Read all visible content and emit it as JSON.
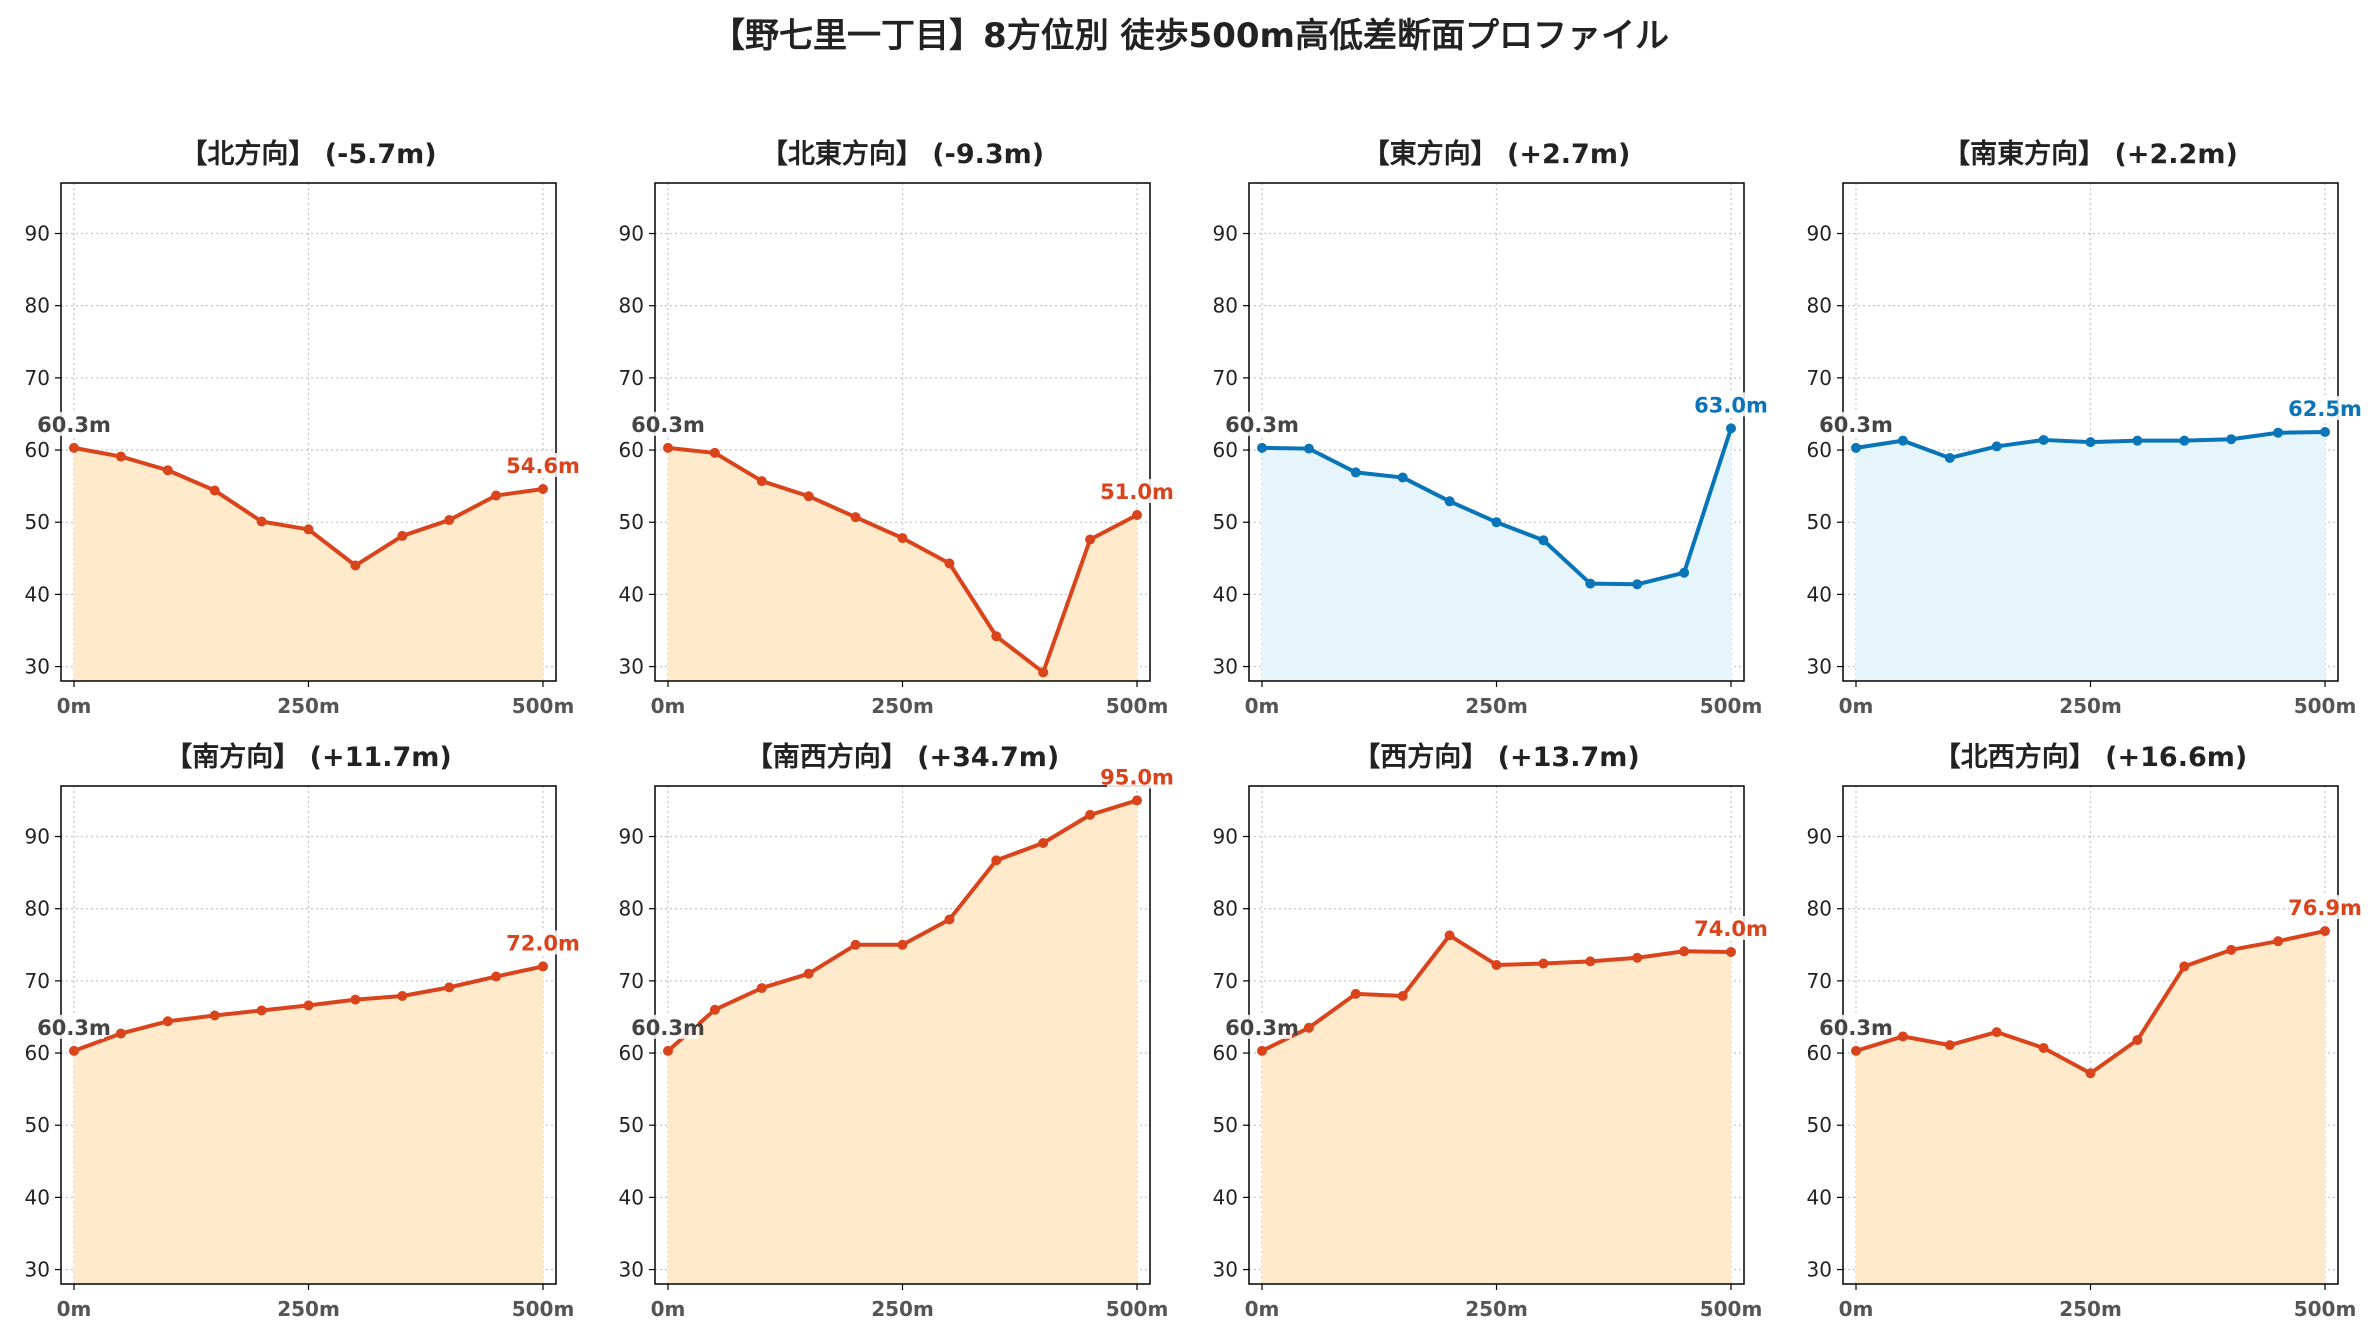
{
  "title": "【野七里一丁目】8方位別 徒歩500m高低差断面プロファイル",
  "colors": {
    "down_line": "#d9441c",
    "down_fill": "#ffebcc",
    "flat_line": "#0a74b8",
    "flat_fill": "#e6f5fb",
    "start_label": "#444444",
    "grid": "#c8c8c8",
    "axis": "#000000"
  },
  "chart_data": [
    {
      "type": "line",
      "title": "【北方向】 (-5.7m)",
      "style": "orange",
      "x": [
        0,
        50,
        100,
        150,
        200,
        250,
        300,
        350,
        400,
        450,
        500
      ],
      "y": [
        60.3,
        59.1,
        57.2,
        54.4,
        50.1,
        49.0,
        44.0,
        48.1,
        50.3,
        53.7,
        54.6
      ],
      "start_label": "60.3m",
      "end_label": "54.6m",
      "xticks": [
        "0m",
        "250m",
        "500m"
      ],
      "yticks": [
        "30",
        "40",
        "50",
        "60",
        "70",
        "80",
        "90"
      ],
      "ylim": [
        28,
        97
      ],
      "grid": true
    },
    {
      "type": "line",
      "title": "【北東方向】 (-9.3m)",
      "style": "orange",
      "x": [
        0,
        50,
        100,
        150,
        200,
        250,
        300,
        350,
        400,
        450,
        500
      ],
      "y": [
        60.3,
        59.6,
        55.7,
        53.6,
        50.7,
        47.8,
        44.3,
        34.2,
        29.2,
        47.6,
        51.0
      ],
      "start_label": "60.3m",
      "end_label": "51.0m",
      "xticks": [
        "0m",
        "250m",
        "500m"
      ],
      "yticks": [
        "30",
        "40",
        "50",
        "60",
        "70",
        "80",
        "90"
      ],
      "ylim": [
        28,
        97
      ],
      "grid": true
    },
    {
      "type": "line",
      "title": "【東方向】 (+2.7m)",
      "style": "blue",
      "x": [
        0,
        50,
        100,
        150,
        200,
        250,
        300,
        350,
        400,
        450,
        500
      ],
      "y": [
        60.3,
        60.2,
        56.9,
        56.2,
        52.9,
        50.0,
        47.5,
        41.5,
        41.4,
        43.0,
        63.0
      ],
      "start_label": "60.3m",
      "end_label": "63.0m",
      "xticks": [
        "0m",
        "250m",
        "500m"
      ],
      "yticks": [
        "30",
        "40",
        "50",
        "60",
        "70",
        "80",
        "90"
      ],
      "ylim": [
        28,
        97
      ],
      "grid": true
    },
    {
      "type": "line",
      "title": "【南東方向】 (+2.2m)",
      "style": "blue",
      "x": [
        0,
        50,
        100,
        150,
        200,
        250,
        300,
        350,
        400,
        450,
        500
      ],
      "y": [
        60.3,
        61.3,
        58.9,
        60.5,
        61.4,
        61.1,
        61.3,
        61.3,
        61.5,
        62.4,
        62.5
      ],
      "start_label": "60.3m",
      "end_label": "62.5m",
      "xticks": [
        "0m",
        "250m",
        "500m"
      ],
      "yticks": [
        "30",
        "40",
        "50",
        "60",
        "70",
        "80",
        "90"
      ],
      "ylim": [
        28,
        97
      ],
      "grid": true
    },
    {
      "type": "line",
      "title": "【南方向】 (+11.7m)",
      "style": "orange",
      "x": [
        0,
        50,
        100,
        150,
        200,
        250,
        300,
        350,
        400,
        450,
        500
      ],
      "y": [
        60.3,
        62.7,
        64.4,
        65.2,
        65.9,
        66.6,
        67.4,
        67.9,
        69.1,
        70.6,
        72.0
      ],
      "start_label": "60.3m",
      "end_label": "72.0m",
      "xticks": [
        "0m",
        "250m",
        "500m"
      ],
      "yticks": [
        "30",
        "40",
        "50",
        "60",
        "70",
        "80",
        "90"
      ],
      "ylim": [
        28,
        97
      ],
      "grid": true
    },
    {
      "type": "line",
      "title": "【南西方向】 (+34.7m)",
      "style": "orange",
      "x": [
        0,
        50,
        100,
        150,
        200,
        250,
        300,
        350,
        400,
        450,
        500
      ],
      "y": [
        60.3,
        66.0,
        69.0,
        71.0,
        75.0,
        75.0,
        78.5,
        86.7,
        89.1,
        93.0,
        95.0
      ],
      "start_label": "60.3m",
      "end_label": "95.0m",
      "xticks": [
        "0m",
        "250m",
        "500m"
      ],
      "yticks": [
        "30",
        "40",
        "50",
        "60",
        "70",
        "80",
        "90"
      ],
      "ylim": [
        28,
        97
      ],
      "grid": true
    },
    {
      "type": "line",
      "title": "【西方向】 (+13.7m)",
      "style": "orange",
      "x": [
        0,
        50,
        100,
        150,
        200,
        250,
        300,
        350,
        400,
        450,
        500
      ],
      "y": [
        60.3,
        63.5,
        68.2,
        67.9,
        76.3,
        72.2,
        72.4,
        72.7,
        73.2,
        74.1,
        74.0
      ],
      "start_label": "60.3m",
      "end_label": "74.0m",
      "xticks": [
        "0m",
        "250m",
        "500m"
      ],
      "yticks": [
        "30",
        "40",
        "50",
        "60",
        "70",
        "80",
        "90"
      ],
      "ylim": [
        28,
        97
      ],
      "grid": true
    },
    {
      "type": "line",
      "title": "【北西方向】 (+16.6m)",
      "style": "orange",
      "x": [
        0,
        50,
        100,
        150,
        200,
        250,
        300,
        350,
        400,
        450,
        500
      ],
      "y": [
        60.3,
        62.3,
        61.1,
        62.9,
        60.7,
        57.2,
        61.8,
        72.0,
        74.3,
        75.5,
        76.9
      ],
      "start_label": "60.3m",
      "end_label": "76.9m",
      "xticks": [
        "0m",
        "250m",
        "500m"
      ],
      "yticks": [
        "30",
        "40",
        "50",
        "60",
        "70",
        "80",
        "90"
      ],
      "ylim": [
        28,
        97
      ],
      "grid": true
    }
  ]
}
